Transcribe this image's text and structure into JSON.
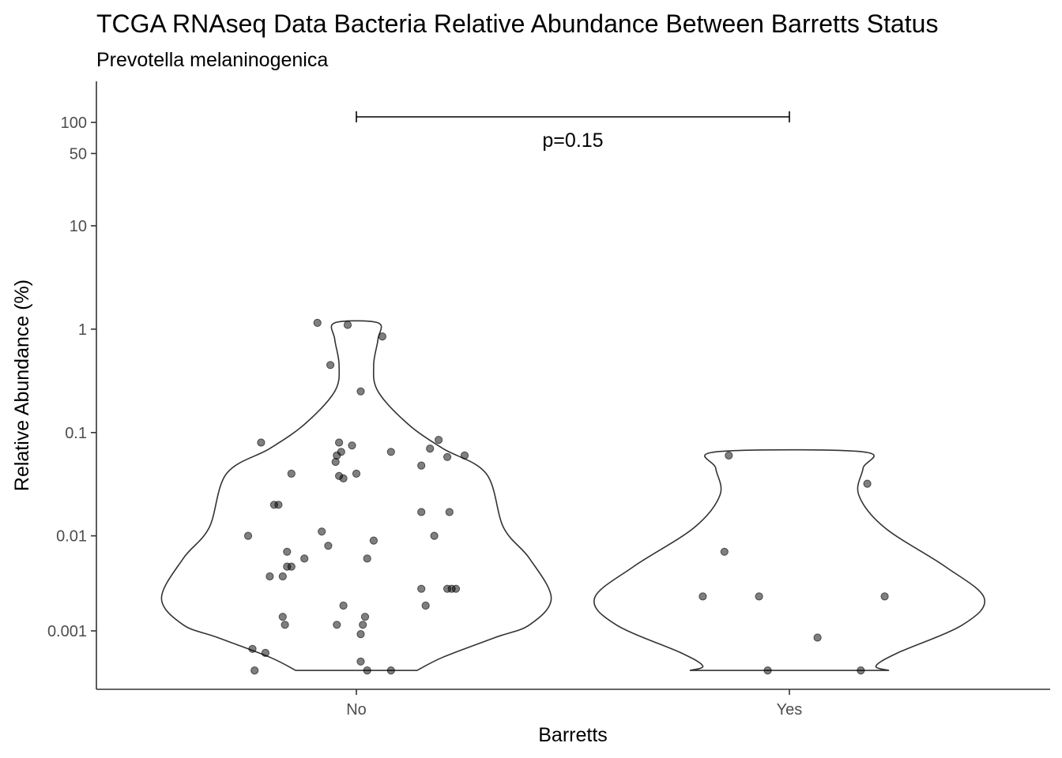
{
  "chart_data": {
    "type": "violin",
    "title": "TCGA RNAseq Data Bacteria Relative Abundance Between Barretts Status",
    "subtitle": "Prevotella melaninogenica",
    "xlabel": "Barretts",
    "ylabel": "Relative Abundance (%)",
    "categories": [
      "No",
      "Yes"
    ],
    "y_scale": "pseudo-log",
    "y_ticks": [
      0.001,
      0.01,
      0.1,
      1,
      10,
      50,
      100
    ],
    "y_tick_labels": [
      "0.001",
      "0.01",
      "0.1",
      "1",
      "10",
      "50",
      "100"
    ],
    "grid": false,
    "legend": "none",
    "colors": {
      "point": "#000000",
      "outline": "#333333",
      "axis": "#333333",
      "annotation": "#000000"
    },
    "annotation": {
      "text": "p=0.15",
      "from": "No",
      "to": "Yes"
    },
    "series": [
      {
        "category": "No",
        "points": [
          {
            "jitter": -0.09,
            "y": 1.15
          },
          {
            "jitter": -0.02,
            "y": 1.1
          },
          {
            "jitter": 0.06,
            "y": 0.85
          },
          {
            "jitter": -0.06,
            "y": 0.45
          },
          {
            "jitter": 0.01,
            "y": 0.25
          },
          {
            "jitter": -0.22,
            "y": 0.08
          },
          {
            "jitter": -0.04,
            "y": 0.08
          },
          {
            "jitter": -0.01,
            "y": 0.075
          },
          {
            "jitter": 0.08,
            "y": 0.065
          },
          {
            "jitter": 0.17,
            "y": 0.07
          },
          {
            "jitter": 0.19,
            "y": 0.085
          },
          {
            "jitter": -0.045,
            "y": 0.06
          },
          {
            "jitter": -0.035,
            "y": 0.065
          },
          {
            "jitter": 0.21,
            "y": 0.058
          },
          {
            "jitter": 0.25,
            "y": 0.06
          },
          {
            "jitter": -0.048,
            "y": 0.052
          },
          {
            "jitter": 0.15,
            "y": 0.048
          },
          {
            "jitter": -0.15,
            "y": 0.04
          },
          {
            "jitter": -0.04,
            "y": 0.038
          },
          {
            "jitter": -0.03,
            "y": 0.036
          },
          {
            "jitter": 0.0,
            "y": 0.04
          },
          {
            "jitter": -0.19,
            "y": 0.02
          },
          {
            "jitter": -0.18,
            "y": 0.02
          },
          {
            "jitter": 0.15,
            "y": 0.017
          },
          {
            "jitter": 0.215,
            "y": 0.017
          },
          {
            "jitter": -0.25,
            "y": 0.01
          },
          {
            "jitter": -0.08,
            "y": 0.011
          },
          {
            "jitter": 0.18,
            "y": 0.01
          },
          {
            "jitter": -0.16,
            "y": 0.007
          },
          {
            "jitter": -0.065,
            "y": 0.008
          },
          {
            "jitter": 0.04,
            "y": 0.009
          },
          {
            "jitter": 0.025,
            "y": 0.006
          },
          {
            "jitter": -0.12,
            "y": 0.006
          },
          {
            "jitter": -0.16,
            "y": 0.005
          },
          {
            "jitter": -0.15,
            "y": 0.005
          },
          {
            "jitter": -0.2,
            "y": 0.004
          },
          {
            "jitter": -0.17,
            "y": 0.004
          },
          {
            "jitter": 0.15,
            "y": 0.003
          },
          {
            "jitter": 0.21,
            "y": 0.003
          },
          {
            "jitter": 0.23,
            "y": 0.003
          },
          {
            "jitter": 0.22,
            "y": 0.003
          },
          {
            "jitter": -0.03,
            "y": 0.002
          },
          {
            "jitter": 0.02,
            "y": 0.0015
          },
          {
            "jitter": 0.16,
            "y": 0.002
          },
          {
            "jitter": -0.17,
            "y": 0.0015
          },
          {
            "jitter": -0.165,
            "y": 0.0012
          },
          {
            "jitter": -0.045,
            "y": 0.0012
          },
          {
            "jitter": 0.015,
            "y": 0.0012
          },
          {
            "jitter": 0.01,
            "y": 0.0009
          },
          {
            "jitter": -0.24,
            "y": 0.0005
          },
          {
            "jitter": -0.21,
            "y": 0.0004
          },
          {
            "jitter": 0.01,
            "y": 0.0002
          },
          {
            "jitter": -0.235,
            "y": 0
          },
          {
            "jitter": 0.025,
            "y": 0
          },
          {
            "jitter": 0.08,
            "y": 0
          }
        ],
        "violin_profile": [
          {
            "y": 0,
            "halfwidth": 0.14
          },
          {
            "y": 0.0003,
            "halfwidth": 0.2
          },
          {
            "y": 0.0008,
            "halfwidth": 0.32
          },
          {
            "y": 0.0012,
            "halfwidth": 0.4
          },
          {
            "y": 0.0024,
            "halfwidth": 0.45
          },
          {
            "y": 0.006,
            "halfwidth": 0.4
          },
          {
            "y": 0.012,
            "halfwidth": 0.34
          },
          {
            "y": 0.04,
            "halfwidth": 0.3
          },
          {
            "y": 0.07,
            "halfwidth": 0.2
          },
          {
            "y": 0.12,
            "halfwidth": 0.12
          },
          {
            "y": 0.25,
            "halfwidth": 0.05
          },
          {
            "y": 0.45,
            "halfwidth": 0.04
          },
          {
            "y": 0.8,
            "halfwidth": 0.05
          },
          {
            "y": 1.15,
            "halfwidth": 0.05
          }
        ]
      },
      {
        "category": "Yes",
        "points": [
          {
            "jitter": -0.14,
            "y": 0.06
          },
          {
            "jitter": 0.18,
            "y": 0.032
          },
          {
            "jitter": -0.15,
            "y": 0.007
          },
          {
            "jitter": -0.2,
            "y": 0.0025
          },
          {
            "jitter": -0.07,
            "y": 0.0025
          },
          {
            "jitter": 0.22,
            "y": 0.0025
          },
          {
            "jitter": 0.065,
            "y": 0.0008
          },
          {
            "jitter": -0.05,
            "y": 0
          },
          {
            "jitter": 0.165,
            "y": 0
          }
        ],
        "violin_profile": [
          {
            "y": 0,
            "halfwidth": 0.23
          },
          {
            "y": 0.0001,
            "halfwidth": 0.2
          },
          {
            "y": 0.0004,
            "halfwidth": 0.25
          },
          {
            "y": 0.0012,
            "halfwidth": 0.4
          },
          {
            "y": 0.0024,
            "halfwidth": 0.45
          },
          {
            "y": 0.005,
            "halfwidth": 0.36
          },
          {
            "y": 0.012,
            "halfwidth": 0.22
          },
          {
            "y": 0.025,
            "halfwidth": 0.16
          },
          {
            "y": 0.045,
            "halfwidth": 0.17
          },
          {
            "y": 0.065,
            "halfwidth": 0.17
          }
        ]
      }
    ]
  }
}
